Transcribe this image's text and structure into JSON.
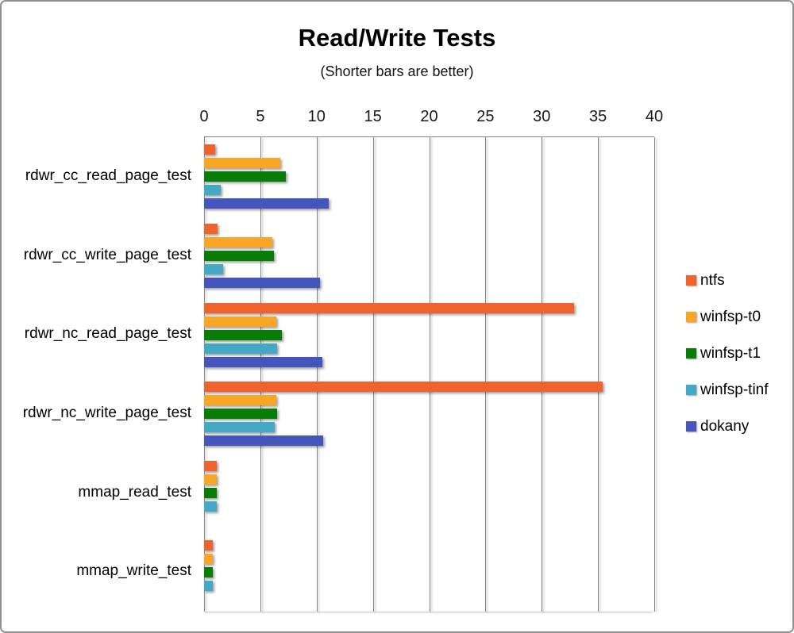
{
  "chart_data": {
    "type": "bar",
    "orientation": "horizontal",
    "title": "Read/Write Tests",
    "subtitle": "(Shorter bars are better)",
    "note": "shorter bars are better",
    "categories": [
      "rdwr_cc_read_page_test",
      "rdwr_cc_write_page_test",
      "rdwr_nc_read_page_test",
      "rdwr_nc_write_page_test",
      "mmap_read_test",
      "mmap_write_test"
    ],
    "series": [
      {
        "name": "ntfs",
        "color": "#F0632D",
        "values": [
          1.0,
          1.2,
          32.9,
          35.4,
          1.1,
          0.8
        ]
      },
      {
        "name": "winfsp-t0",
        "color": "#F9A525",
        "values": [
          6.8,
          6.1,
          6.4,
          6.4,
          1.1,
          0.8
        ]
      },
      {
        "name": "winfsp-t1",
        "color": "#077D07",
        "values": [
          7.3,
          6.2,
          6.9,
          6.5,
          1.1,
          0.8
        ]
      },
      {
        "name": "winfsp-tinf",
        "color": "#45A9C6",
        "values": [
          1.5,
          1.7,
          6.5,
          6.3,
          1.1,
          0.8
        ]
      },
      {
        "name": "dokany",
        "color": "#4456BE",
        "values": [
          11.1,
          10.3,
          10.5,
          10.6,
          null,
          null
        ]
      }
    ],
    "xlim": [
      0,
      40
    ],
    "xticks": [
      0,
      5,
      10,
      15,
      20,
      25,
      30,
      35,
      40
    ],
    "grid": true,
    "axis_position": "top",
    "legend_position": "right",
    "gridline_color": "#848484",
    "background_color": "#ffffff",
    "frame_border_color": "#8f8f8f"
  }
}
